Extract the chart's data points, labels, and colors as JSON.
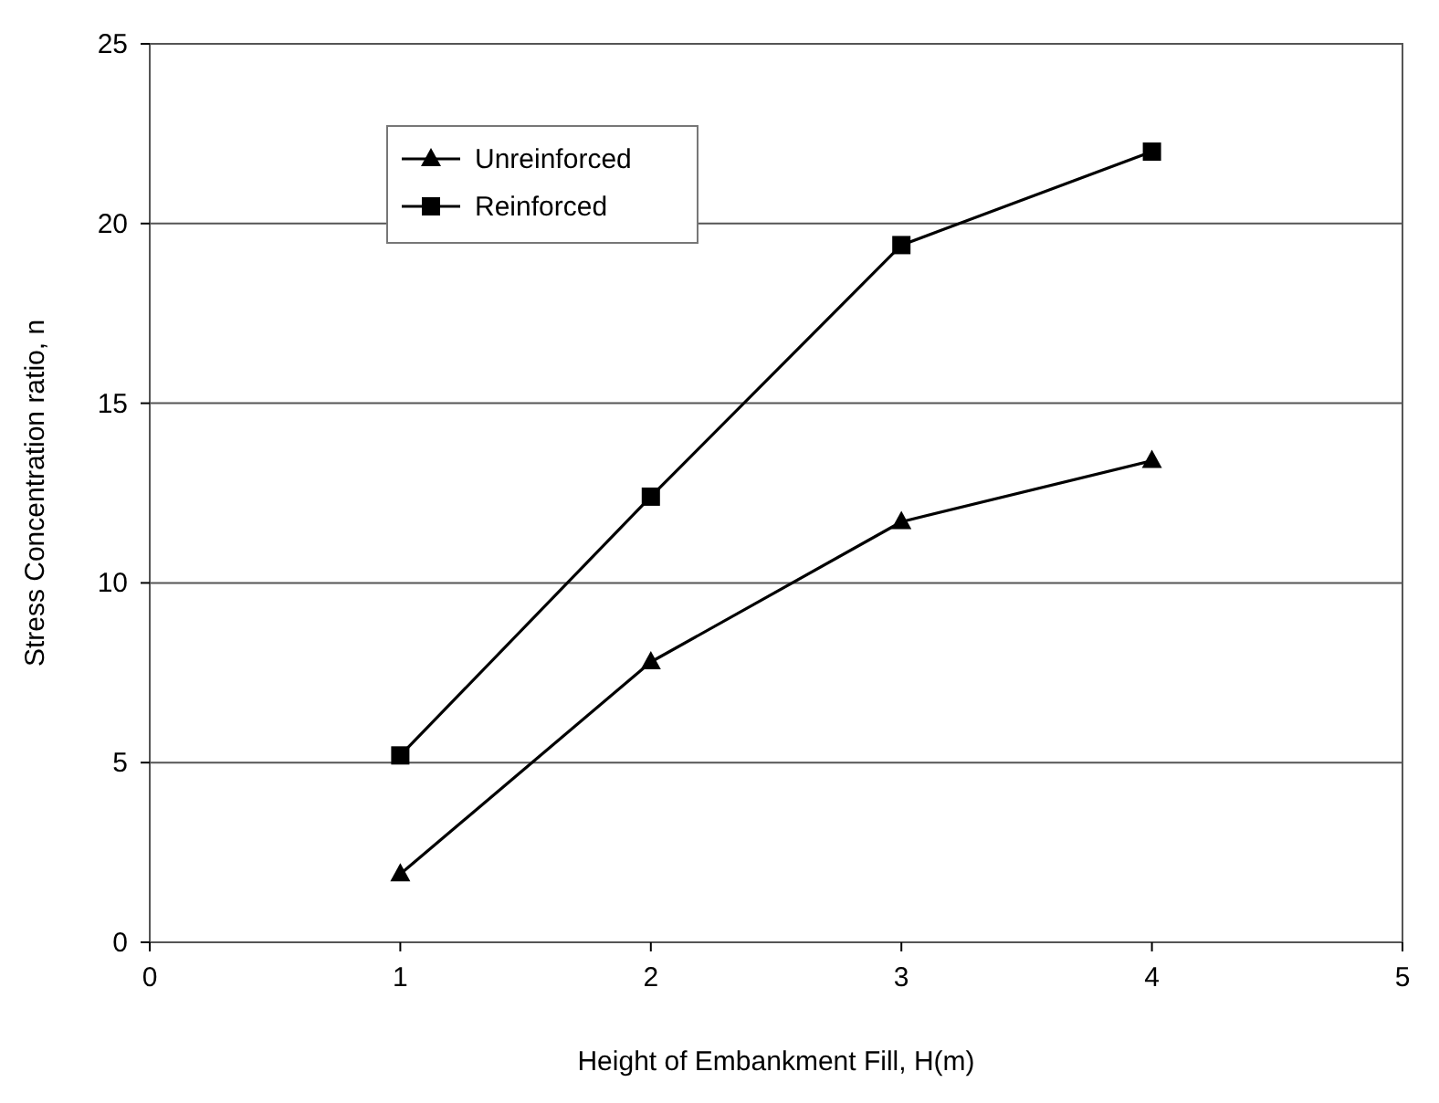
{
  "chart_data": {
    "type": "line",
    "xlabel": "Height of Embankment Fill, H(m)",
    "ylabel": "Stress Concentration ratio, n",
    "x": [
      1,
      2,
      3,
      4
    ],
    "series": [
      {
        "name": "Unreinforced",
        "color": "#000000",
        "marker": "triangle",
        "values": [
          1.9,
          7.8,
          11.7,
          13.4
        ]
      },
      {
        "name": "Reinforced",
        "color": "#000000",
        "marker": "square",
        "values": [
          5.2,
          12.4,
          19.4,
          22
        ]
      }
    ],
    "xlim": [
      0,
      5
    ],
    "xticks": [
      0,
      1,
      2,
      3,
      4,
      5
    ],
    "ylim": [
      0,
      25
    ],
    "yticks": [
      0,
      5,
      10,
      15,
      20,
      25
    ],
    "grid": "y",
    "legend": "top left",
    "line_style": "solid"
  }
}
